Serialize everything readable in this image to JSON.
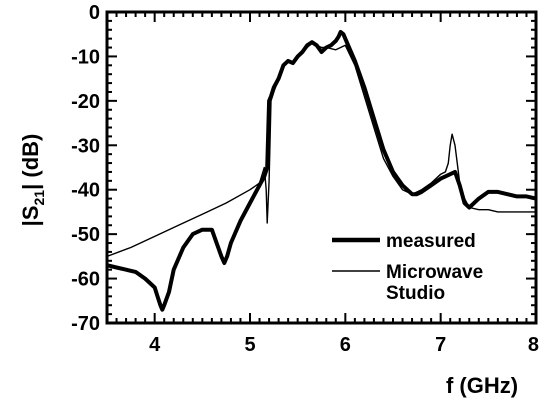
{
  "chart_data": {
    "type": "line",
    "title": "",
    "xlabel": "f (GHz)",
    "ylabel_parts": {
      "left_bar": "|",
      "main": "S",
      "sub": "21",
      "right_bar": "|",
      "unit": " (dB)"
    },
    "xlim": [
      3.5,
      8
    ],
    "ylim": [
      -70,
      0
    ],
    "x_ticks": [
      "4",
      "5",
      "6",
      "7",
      "8"
    ],
    "y_ticks": [
      "0",
      "-10",
      "-20",
      "-30",
      "-40",
      "-50",
      "-60",
      "-70"
    ],
    "grid": false,
    "legend_position": "bottom-right",
    "series": [
      {
        "name": "measured",
        "color": "#000000",
        "style": "thick",
        "x": [
          3.5,
          3.6,
          3.7,
          3.8,
          3.9,
          3.95,
          4.0,
          4.03,
          4.06,
          4.08,
          4.1,
          4.15,
          4.2,
          4.3,
          4.4,
          4.5,
          4.6,
          4.65,
          4.7,
          4.73,
          4.76,
          4.8,
          4.9,
          5.0,
          5.1,
          5.15,
          5.18,
          5.2,
          5.22,
          5.25,
          5.3,
          5.35,
          5.4,
          5.45,
          5.5,
          5.55,
          5.6,
          5.65,
          5.7,
          5.75,
          5.8,
          5.85,
          5.9,
          5.93,
          5.95,
          5.98,
          6.0,
          6.1,
          6.2,
          6.3,
          6.4,
          6.5,
          6.6,
          6.7,
          6.75,
          6.8,
          6.9,
          7.0,
          7.05,
          7.1,
          7.15,
          7.2,
          7.25,
          7.3,
          7.4,
          7.5,
          7.6,
          7.7,
          7.8,
          7.9,
          8.0
        ],
        "y": [
          -57,
          -57.5,
          -58,
          -58.5,
          -60,
          -61,
          -62,
          -64,
          -66,
          -67,
          -66,
          -63,
          -58,
          -53,
          -50,
          -49,
          -49,
          -52,
          -55,
          -56.5,
          -55,
          -52,
          -47,
          -43,
          -39,
          -37,
          -35,
          -20,
          -19,
          -17,
          -15,
          -12,
          -11,
          -11.5,
          -10,
          -9,
          -7.5,
          -6.8,
          -7.5,
          -9,
          -8,
          -7.5,
          -6.5,
          -5.5,
          -4.5,
          -5,
          -6,
          -11,
          -17,
          -24,
          -31,
          -36,
          -39,
          -41,
          -41,
          -40.5,
          -39,
          -37.5,
          -37,
          -36.5,
          -36,
          -39,
          -43,
          -44,
          -42,
          -40.5,
          -40.5,
          -41,
          -41.5,
          -41.5,
          -42
        ]
      },
      {
        "name": "Microwave Studio",
        "color": "#000000",
        "style": "thin",
        "x": [
          3.5,
          3.75,
          4.0,
          4.25,
          4.5,
          4.75,
          5.0,
          5.1,
          5.15,
          5.17,
          5.18,
          5.2,
          5.22,
          5.25,
          5.3,
          5.35,
          5.4,
          5.45,
          5.5,
          5.55,
          5.6,
          5.65,
          5.7,
          5.75,
          5.8,
          5.9,
          5.95,
          6.0,
          6.1,
          6.2,
          6.3,
          6.4,
          6.5,
          6.6,
          6.7,
          6.8,
          6.9,
          7.0,
          7.05,
          7.08,
          7.1,
          7.12,
          7.15,
          7.18,
          7.2,
          7.25,
          7.3,
          7.4,
          7.5,
          7.6,
          7.8,
          8.0
        ],
        "y": [
          -55,
          -53,
          -50.5,
          -48,
          -45.5,
          -43,
          -40,
          -38.5,
          -35,
          -40,
          -47.5,
          -38,
          -20,
          -18,
          -15,
          -12,
          -11,
          -11.5,
          -10,
          -9,
          -8,
          -7,
          -7.5,
          -8,
          -8,
          -8.5,
          -8,
          -7.5,
          -12,
          -19,
          -26,
          -33,
          -37,
          -40,
          -41,
          -40,
          -38.5,
          -36.5,
          -36,
          -34,
          -30,
          -27.5,
          -30,
          -35,
          -38.5,
          -42,
          -44,
          -44.5,
          -44.5,
          -45,
          -45,
          -45
        ]
      }
    ]
  }
}
